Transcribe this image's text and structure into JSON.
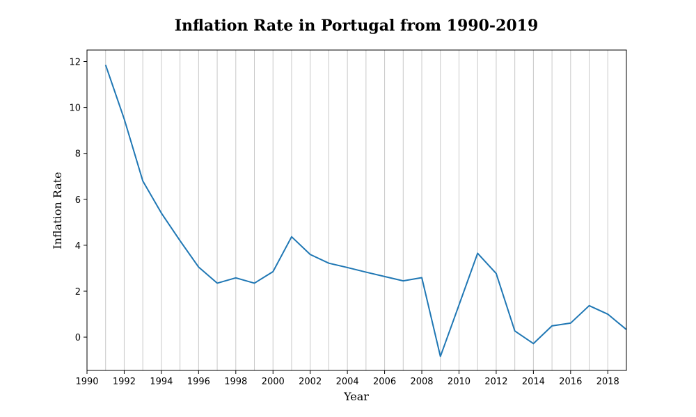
{
  "chart_data": {
    "type": "line",
    "title": "Inflation Rate in Portugal from 1990-2019",
    "xlabel": "Year",
    "ylabel": "Inflation Rate",
    "xlim": [
      1990,
      2019
    ],
    "ylim": [
      -1.45,
      12.5
    ],
    "x_ticks": [
      1990,
      1992,
      1994,
      1996,
      1998,
      2000,
      2002,
      2004,
      2006,
      2008,
      2010,
      2012,
      2014,
      2016,
      2018
    ],
    "y_ticks": [
      0,
      2,
      4,
      6,
      8,
      10,
      12
    ],
    "grid": "vertical lines every year",
    "line_color": "#1f77b4",
    "grid_color": "#c8c8c8",
    "series": [
      {
        "x": [
          1991,
          1992,
          1993,
          1994,
          1995,
          1996,
          1997,
          1998,
          1999,
          2000,
          2001,
          2002,
          2003,
          2004,
          2005,
          2006,
          2007,
          2008,
          2009,
          2010,
          2011,
          2012,
          2013,
          2014,
          2015,
          2016,
          2017,
          2018,
          2019
        ],
        "values": [
          11.85,
          9.5,
          6.8,
          5.4,
          4.2,
          3.05,
          2.35,
          2.58,
          2.35,
          2.85,
          4.37,
          3.6,
          3.22,
          3.03,
          2.83,
          2.64,
          2.45,
          2.59,
          -0.84,
          1.4,
          3.65,
          2.77,
          0.27,
          -0.28,
          0.49,
          0.61,
          1.37,
          1.0,
          0.33
        ]
      }
    ]
  }
}
